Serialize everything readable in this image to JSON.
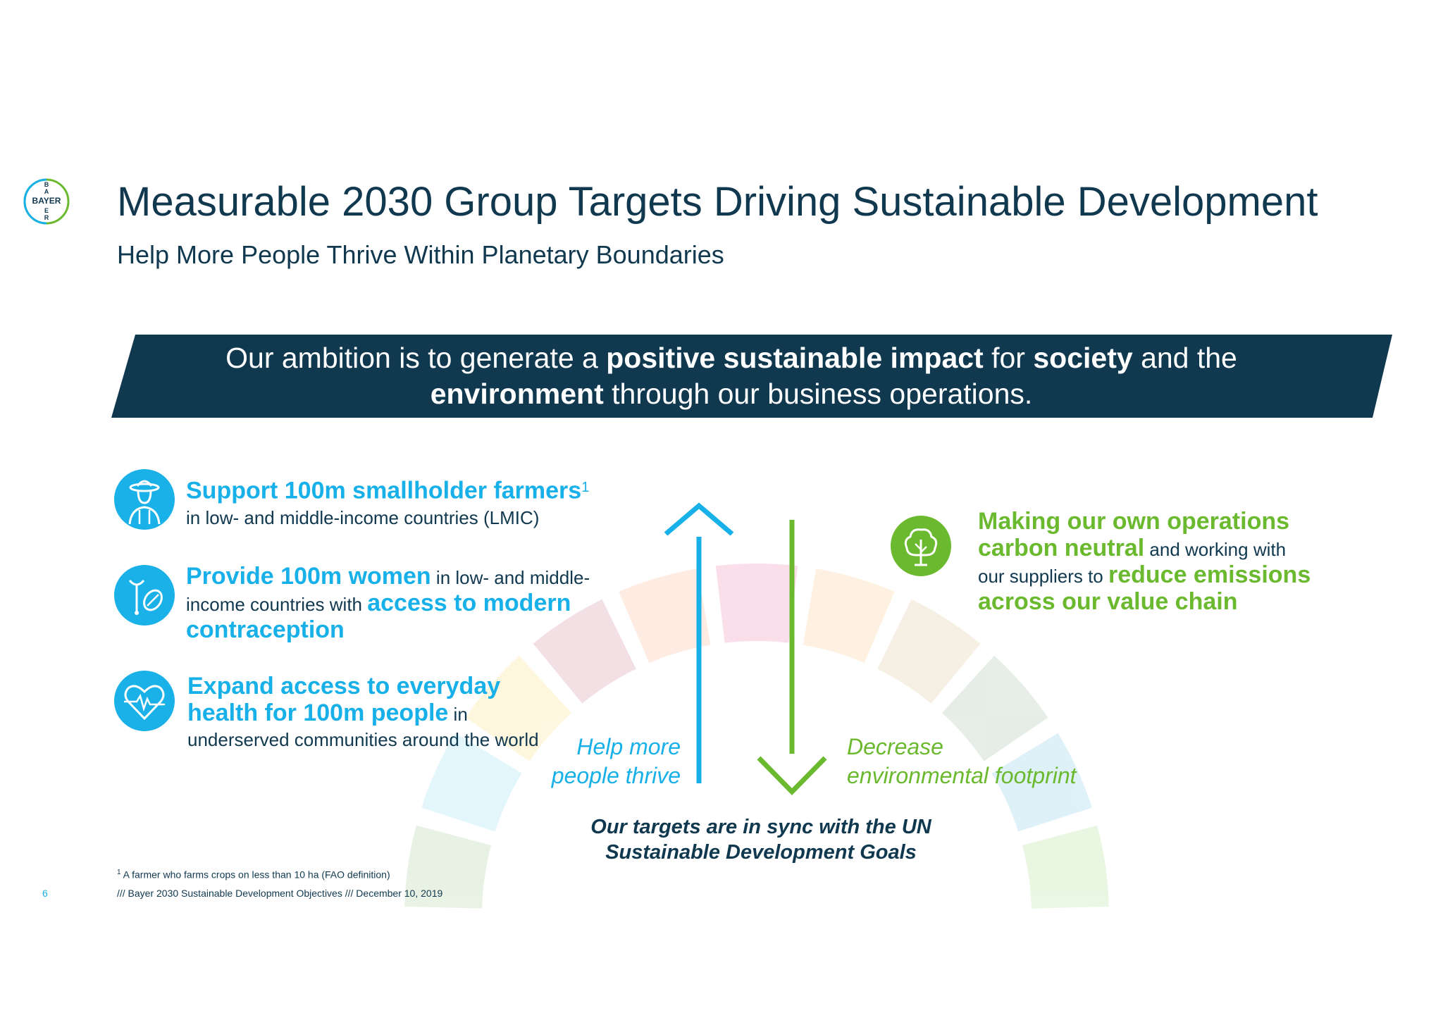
{
  "logo": {
    "text": "BAYER",
    "letters": [
      "B",
      "A",
      "Y",
      "E",
      "R"
    ]
  },
  "header": {
    "title": "Measurable 2030 Group Targets Driving Sustainable Development",
    "subtitle": "Help More People Thrive Within Planetary Boundaries"
  },
  "banner": {
    "part1": "Our ambition is to generate a ",
    "bold1": "positive sustainable impact",
    "part2": " for ",
    "bold2": "society",
    "part3": " and the",
    "bold3": "environment",
    "part4": " through our business operations."
  },
  "goals": {
    "farmers": {
      "heading": "Support 100m smallholder farmers",
      "sup": "1",
      "detail": "in low- and middle-income countries (LMIC)"
    },
    "women": {
      "heading": "Provide 100m women",
      "mid1": " in low- and middle-",
      "mid2": "income countries with ",
      "bold2": "access to modern",
      "bold3": "contraception"
    },
    "health": {
      "line1": "Expand access to everyday",
      "line2": "health for 100m people",
      "line2_tail": " in",
      "line3": "underserved communities around the world"
    },
    "carbon": {
      "line1": "Making our own operations",
      "line2_bold": "carbon neutral",
      "line2_tail": " and working with",
      "line3_pre": "our suppliers to ",
      "line3_bold": "reduce emissions",
      "line4": "across our value chain"
    }
  },
  "arrows": {
    "up_label_1": "Help more",
    "up_label_2": "people thrive",
    "down_label_1": "Decrease",
    "down_label_2": "environmental footprint"
  },
  "sync": {
    "line1": "Our targets are in sync with the UN",
    "line2": "Sustainable Development Goals"
  },
  "footer": {
    "footnote_sup": "1",
    "footnote": " A farmer who farms crops on less than 10 ha (FAO definition)",
    "source": "/// Bayer 2030 Sustainable Development Objectives /// December 10, 2019",
    "page": "6"
  },
  "colors": {
    "navy": "#10384f",
    "blue": "#17b0e8",
    "green": "#6ab92e"
  }
}
